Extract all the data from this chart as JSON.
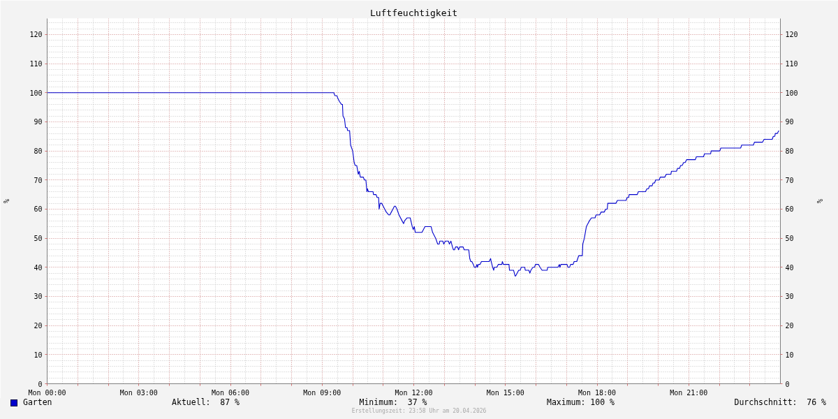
{
  "chart_data": {
    "type": "line",
    "title": "Luftfeuchtigkeit",
    "ylabel": "%",
    "y2label": "%",
    "x": [
      "2026-04-20T00:00",
      "2026-04-20T09:23",
      "2026-04-20T09:25",
      "2026-04-20T09:29",
      "2026-04-20T09:31",
      "2026-04-20T09:34",
      "2026-04-20T09:38",
      "2026-04-20T09:40",
      "2026-04-20T09:41",
      "2026-04-20T09:44",
      "2026-04-20T09:46",
      "2026-04-20T09:49",
      "2026-04-20T09:50",
      "2026-04-20T09:54",
      "2026-04-20T09:56",
      "2026-04-20T10:00",
      "2026-04-20T10:03",
      "2026-04-20T10:05",
      "2026-04-20T10:08",
      "2026-04-20T10:11",
      "2026-04-20T10:13",
      "2026-04-20T10:15",
      "2026-04-20T10:21",
      "2026-04-20T10:23",
      "2026-04-20T10:26",
      "2026-04-20T10:28",
      "2026-04-20T10:29",
      "2026-04-20T10:31",
      "2026-04-20T10:40",
      "2026-04-20T10:41",
      "2026-04-20T10:46",
      "2026-04-20T10:48",
      "2026-04-20T10:51",
      "2026-04-20T10:52",
      "2026-04-20T10:54",
      "2026-04-20T10:57",
      "2026-04-20T11:00",
      "2026-04-20T11:03",
      "2026-04-20T11:06",
      "2026-04-20T11:11",
      "2026-04-20T11:13",
      "2026-04-20T11:16",
      "2026-04-20T11:19",
      "2026-04-20T11:22",
      "2026-04-20T11:24",
      "2026-04-20T11:27",
      "2026-04-20T11:31",
      "2026-04-20T11:37",
      "2026-04-20T11:40",
      "2026-04-20T11:42",
      "2026-04-20T11:47",
      "2026-04-20T11:53",
      "2026-04-20T11:57",
      "2026-04-20T11:59",
      "2026-04-20T12:01",
      "2026-04-20T12:03",
      "2026-04-20T12:16",
      "2026-04-20T12:19",
      "2026-04-20T12:22",
      "2026-04-20T12:34",
      "2026-04-20T12:37",
      "2026-04-20T12:40",
      "2026-04-20T12:43",
      "2026-04-20T12:47",
      "2026-04-20T12:50",
      "2026-04-20T12:51",
      "2026-04-20T12:57",
      "2026-04-20T12:59",
      "2026-04-20T13:02",
      "2026-04-20T13:08",
      "2026-04-20T13:10",
      "2026-04-20T13:13",
      "2026-04-20T13:16",
      "2026-04-20T13:18",
      "2026-04-20T13:20",
      "2026-04-20T13:22",
      "2026-04-20T13:26",
      "2026-04-20T13:28",
      "2026-04-20T13:30",
      "2026-04-20T13:37",
      "2026-04-20T13:39",
      "2026-04-20T13:48",
      "2026-04-20T13:50",
      "2026-04-20T13:52",
      "2026-04-20T13:54",
      "2026-04-20T13:57",
      "2026-04-20T13:59",
      "2026-04-20T14:02",
      "2026-04-20T14:04",
      "2026-04-20T14:05",
      "2026-04-20T14:07",
      "2026-04-20T14:10",
      "2026-04-20T14:13",
      "2026-04-20T14:28",
      "2026-04-20T14:31",
      "2026-04-20T14:32",
      "2026-04-20T14:35",
      "2026-04-20T14:37",
      "2026-04-20T14:38",
      "2026-04-20T14:43",
      "2026-04-20T14:46",
      "2026-04-20T14:53",
      "2026-04-20T14:54",
      "2026-04-20T14:56",
      "2026-04-20T15:07",
      "2026-04-20T15:08",
      "2026-04-20T15:16",
      "2026-04-20T15:19",
      "2026-04-20T15:20",
      "2026-04-20T15:23",
      "2026-04-20T15:26",
      "2026-04-20T15:29",
      "2026-04-20T15:31",
      "2026-04-20T15:38",
      "2026-04-20T15:39",
      "2026-04-20T15:46",
      "2026-04-20T15:48",
      "2026-04-20T15:50",
      "2026-04-20T15:54",
      "2026-04-20T15:57",
      "2026-04-20T15:59",
      "2026-04-20T16:05",
      "2026-04-20T16:08",
      "2026-04-20T16:12",
      "2026-04-20T16:22",
      "2026-04-20T16:23",
      "2026-04-20T16:43",
      "2026-04-20T16:46",
      "2026-04-20T16:47",
      "2026-04-20T16:49",
      "2026-04-20T17:01",
      "2026-04-20T17:03",
      "2026-04-20T17:06",
      "2026-04-20T17:08",
      "2026-04-20T17:13",
      "2026-04-20T17:15",
      "2026-04-20T17:20",
      "2026-04-20T17:22",
      "2026-04-20T17:24",
      "2026-04-20T17:31",
      "2026-04-20T17:32",
      "2026-04-20T17:35",
      "2026-04-20T17:37",
      "2026-04-20T17:39",
      "2026-04-20T17:42",
      "2026-04-20T17:45",
      "2026-04-20T17:49",
      "2026-04-20T17:56",
      "2026-04-20T17:58",
      "2026-04-20T18:05",
      "2026-04-20T18:08",
      "2026-04-20T18:14",
      "2026-04-20T18:17",
      "2026-04-20T18:20",
      "2026-04-20T18:21",
      "2026-04-20T18:37",
      "2026-04-20T18:40",
      "2026-04-20T18:57",
      "2026-04-20T18:59",
      "2026-04-20T19:02",
      "2026-04-20T19:03",
      "2026-04-20T19:19",
      "2026-04-20T19:21",
      "2026-04-20T19:35",
      "2026-04-20T19:38",
      "2026-04-20T19:41",
      "2026-04-20T19:43",
      "2026-04-20T19:48",
      "2026-04-20T19:50",
      "2026-04-20T19:53",
      "2026-04-20T19:55",
      "2026-04-20T20:02",
      "2026-04-20T20:04",
      "2026-04-20T20:13",
      "2026-04-20T20:16",
      "2026-04-20T20:25",
      "2026-04-20T20:26",
      "2026-04-20T20:36",
      "2026-04-20T20:38",
      "2026-04-20T20:42",
      "2026-04-20T20:44",
      "2026-04-20T20:47",
      "2026-04-20T20:50",
      "2026-04-20T20:53",
      "2026-04-20T20:56",
      "2026-04-20T21:13",
      "2026-04-20T21:15",
      "2026-04-20T21:29",
      "2026-04-20T21:31",
      "2026-04-20T21:43",
      "2026-04-20T21:44",
      "2026-04-20T22:01",
      "2026-04-20T22:03",
      "2026-04-20T22:42",
      "2026-04-20T22:44",
      "2026-04-20T23:07",
      "2026-04-20T23:09",
      "2026-04-20T23:25",
      "2026-04-20T23:28",
      "2026-04-20T23:44",
      "2026-04-20T23:46",
      "2026-04-20T23:49",
      "2026-04-20T23:50",
      "2026-04-20T23:54",
      "2026-04-20T23:57"
    ],
    "series": [
      {
        "name": "Garten",
        "color": "#0000cc",
        "values": [
          100,
          100,
          99,
          99,
          98,
          97,
          96,
          96,
          92,
          91,
          88,
          88,
          87,
          87,
          82,
          80,
          76,
          75,
          75,
          72,
          73,
          71,
          71,
          70,
          70,
          66,
          67,
          66,
          66,
          65,
          65,
          64,
          64,
          60,
          62,
          62,
          61,
          60,
          59,
          58,
          58,
          59,
          60,
          61,
          61,
          60,
          58,
          56,
          55,
          56,
          57,
          57,
          54,
          53,
          54,
          52,
          52,
          53,
          54,
          54,
          52,
          51,
          50,
          48,
          48,
          49,
          49,
          48,
          49,
          49,
          48,
          49,
          47,
          46,
          46,
          47,
          47,
          46,
          47,
          47,
          46,
          46,
          43,
          42,
          42,
          41,
          40,
          40,
          41,
          40,
          41,
          41,
          42,
          42,
          43,
          42,
          40,
          39,
          40,
          40,
          41,
          41,
          42,
          41,
          41,
          39,
          39,
          37,
          37,
          38,
          39,
          39,
          40,
          40,
          39,
          39,
          38,
          39,
          40,
          40,
          41,
          41,
          40,
          39,
          39,
          40,
          40,
          41,
          40,
          41,
          41,
          40,
          40,
          41,
          41,
          42,
          42,
          43,
          44,
          44,
          48,
          50,
          52,
          54,
          55,
          56,
          57,
          57,
          58,
          58,
          59,
          59,
          60,
          60,
          62,
          62,
          63,
          63,
          64,
          64,
          65,
          65,
          66,
          66,
          67,
          67,
          68,
          68,
          69,
          69,
          70,
          70,
          71,
          71,
          72,
          72,
          73,
          73,
          74,
          74,
          75,
          75,
          76,
          76,
          77,
          77,
          78,
          78,
          79,
          79,
          80,
          80,
          81,
          81,
          82,
          82,
          83,
          83,
          84,
          84,
          85,
          85,
          86,
          86,
          87
        ]
      }
    ],
    "xlim": [
      "2026-04-20T00:00",
      "2026-04-21T00:00"
    ],
    "xticks": [
      {
        "value": "2026-04-20T00:00",
        "label": "Mon 00:00"
      },
      {
        "value": "2026-04-20T01:00",
        "label": null
      },
      {
        "value": "2026-04-20T02:00",
        "label": null
      },
      {
        "value": "2026-04-20T03:00",
        "label": "Mon 03:00"
      },
      {
        "value": "2026-04-20T04:00",
        "label": null
      },
      {
        "value": "2026-04-20T05:00",
        "label": null
      },
      {
        "value": "2026-04-20T06:00",
        "label": "Mon 06:00"
      },
      {
        "value": "2026-04-20T07:00",
        "label": null
      },
      {
        "value": "2026-04-20T08:00",
        "label": null
      },
      {
        "value": "2026-04-20T09:00",
        "label": "Mon 09:00"
      },
      {
        "value": "2026-04-20T10:00",
        "label": null
      },
      {
        "value": "2026-04-20T11:00",
        "label": null
      },
      {
        "value": "2026-04-20T12:00",
        "label": "Mon 12:00"
      },
      {
        "value": "2026-04-20T13:00",
        "label": null
      },
      {
        "value": "2026-04-20T14:00",
        "label": null
      },
      {
        "value": "2026-04-20T15:00",
        "label": "Mon 15:00"
      },
      {
        "value": "2026-04-20T16:00",
        "label": null
      },
      {
        "value": "2026-04-20T17:00",
        "label": null
      },
      {
        "value": "2026-04-20T18:00",
        "label": "Mon 18:00"
      },
      {
        "value": "2026-04-20T19:00",
        "label": null
      },
      {
        "value": "2026-04-20T20:00",
        "label": null
      },
      {
        "value": "2026-04-20T21:00",
        "label": "Mon 21:00"
      },
      {
        "value": "2026-04-20T22:00",
        "label": null
      },
      {
        "value": "2026-04-20T23:00",
        "label": null
      }
    ],
    "ylim": [
      0,
      125.5
    ],
    "yticks": [
      0,
      10,
      20,
      30,
      40,
      50,
      60,
      70,
      80,
      90,
      100,
      110,
      120
    ],
    "y2lim": [
      0,
      125.5
    ],
    "y2ticks": [
      0,
      10,
      20,
      30,
      40,
      50,
      60,
      70,
      80,
      90,
      100,
      110,
      120
    ],
    "grid": true,
    "legend": "bottom left",
    "annotations": [
      "Aktuell:  87 %",
      "Minimum:  37 %",
      "Maximum: 100 %",
      "Durchschnitt:  76 %",
      "Erstellungszeit: 23:58 Uhr am 20.04.2026"
    ]
  }
}
